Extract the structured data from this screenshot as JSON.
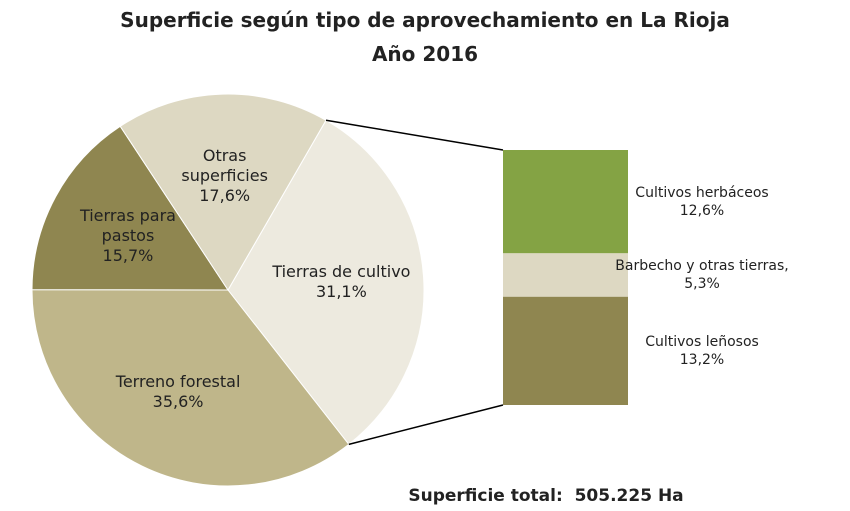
{
  "chart_data": {
    "type": "pie-of-bar",
    "title": "Superficie según tipo de aprovechamiento en La Rioja",
    "subtitle": "Año 2016",
    "categories": [
      "Tierras de cultivo",
      "Terreno forestal",
      "Tierras para pastos",
      "Otras superficies"
    ],
    "values": [
      31.1,
      35.6,
      15.7,
      17.6
    ],
    "value_labels": [
      "31,1%",
      "35,6%",
      "15,7%",
      "17,6%"
    ],
    "colors": [
      "#edeadf",
      "#bfb68a",
      "#8f8650",
      "#ddd8c2"
    ],
    "bar": {
      "categories": [
        "Cultivos herbáceos",
        "Barbecho y otras tierras,",
        "Cultivos leñosos"
      ],
      "values": [
        12.6,
        5.3,
        13.2
      ],
      "value_labels": [
        "12,6%",
        "5,3%",
        "13,2%"
      ],
      "colors": [
        "#84a344",
        "#ddd8c2",
        "#8f8650"
      ]
    },
    "footnote": "Superficie total:  505.225 Ha"
  }
}
